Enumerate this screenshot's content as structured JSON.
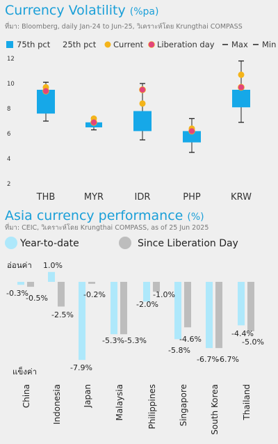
{
  "colors": {
    "title": "#1a9fd8",
    "box": "#16a8e8",
    "current": "#f4b41a",
    "liberation": "#e2457a",
    "ytd": "#aee8fb",
    "since": "#bdbdbd",
    "text": "#333333",
    "muted": "#777777"
  },
  "chart_data": [
    {
      "type": "box",
      "title": "Currency Volatility",
      "title_unit": "(%pa)",
      "source": "ที่มา: Bloomberg, daily Jan-24 to Jun-25, วิเคราะห์โดย Krungthai COMPASS",
      "legend": [
        "75th pct",
        "25th pct",
        "Current",
        "Liberation day",
        "Max",
        "Min"
      ],
      "categories": [
        "THB",
        "MYR",
        "IDR",
        "PHP",
        "KRW"
      ],
      "p75": [
        9.5,
        6.9,
        7.8,
        6.2,
        9.5
      ],
      "p25": [
        7.6,
        6.5,
        6.2,
        5.3,
        8.1
      ],
      "max": [
        10.1,
        7.3,
        10.0,
        7.2,
        11.8
      ],
      "min": [
        7.0,
        6.3,
        5.5,
        4.5,
        6.9
      ],
      "current": [
        9.7,
        7.2,
        8.4,
        6.4,
        10.7
      ],
      "liberation": [
        9.4,
        6.9,
        9.5,
        6.2,
        9.7
      ],
      "yticks": [
        2,
        4,
        6,
        8,
        10,
        12
      ],
      "ylim": [
        1.5,
        12.5
      ],
      "grid": false
    },
    {
      "type": "bar",
      "title": "Asia currency performance",
      "title_unit": "(%)",
      "source": "ที่มา: CEIC, วิเคราะห์โดย Krungthai COMPASS, as of 25 Jun 2025",
      "appreciate_label": "อ่อนค่า",
      "depreciate_label": "แข็งค่า",
      "categories": [
        "China",
        "Indonesia",
        "Japan",
        "Malaysia",
        "Philippines",
        "Singapore",
        "South Korea",
        "Thailand"
      ],
      "series": [
        {
          "name": "Year-to-date",
          "values": [
            -0.3,
            1.0,
            -7.9,
            -5.3,
            -2.0,
            -5.8,
            -6.7,
            -4.4
          ],
          "labels": [
            "-0.3%",
            "1.0%",
            "-7.9%",
            "-5.3%",
            "-2.0%",
            "-5.8%",
            "-6.7%",
            "-4.4%"
          ]
        },
        {
          "name": "Since Liberation Day",
          "values": [
            -0.5,
            -2.5,
            -0.2,
            -5.3,
            -1.0,
            -4.6,
            -6.7,
            -5.0
          ],
          "labels": [
            "-0.5%",
            "-2.5%",
            "-0.2%",
            "-5.3%",
            "-1.0%",
            "-4.6%",
            "-6.7%",
            "-5.0%"
          ]
        }
      ],
      "ylim": [
        -9,
        1.5
      ]
    }
  ]
}
